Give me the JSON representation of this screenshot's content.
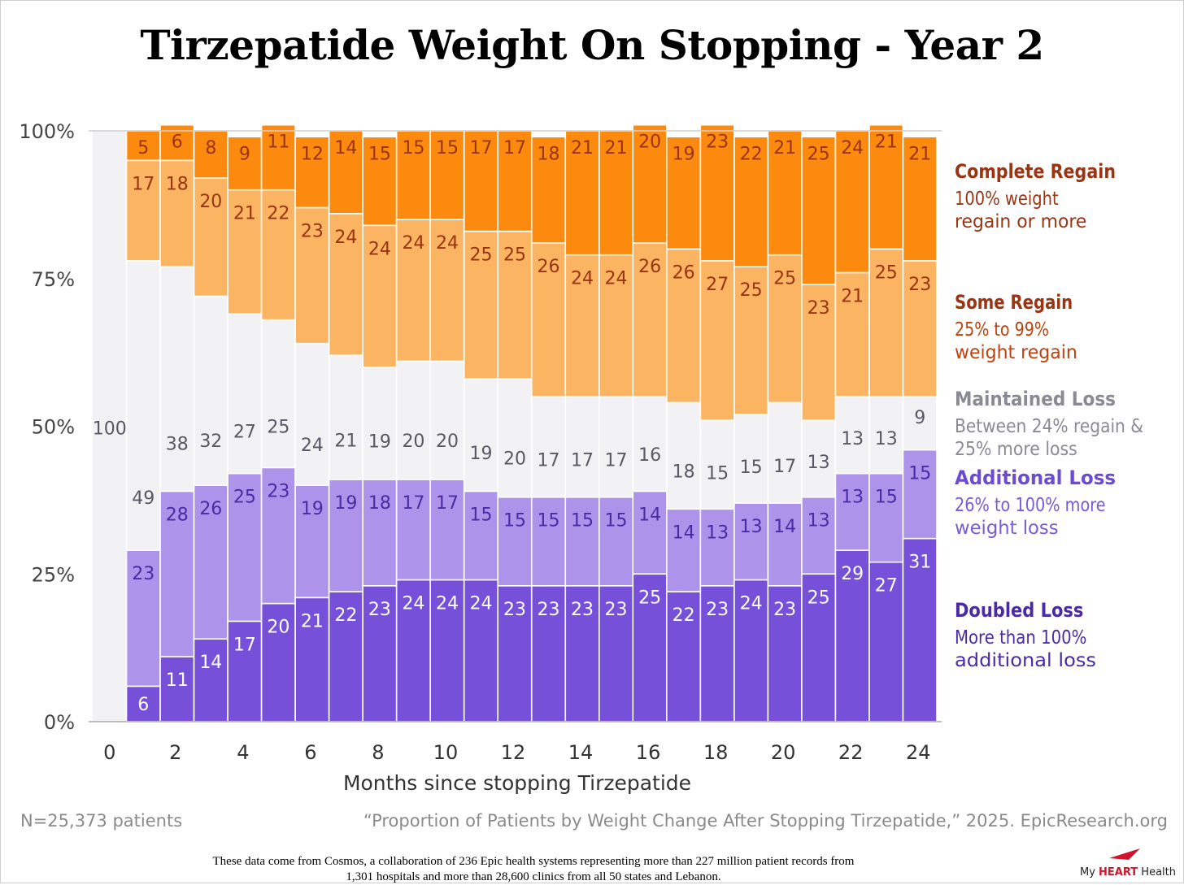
{
  "title": "Tirzepatide Weight On Stopping - Year 2",
  "footer": {
    "n_label": "N=25,373 patients",
    "citation": "“Proportion of Patients by Weight Change After Stopping Tirzepatide,” 2025. EpicResearch.org",
    "source_note": "These data come from Cosmos, a collaboration of 236 Epic health systems representing more than 227 million patient records from 1,301 hospitals and more than 28,600 clinics from all 50 states and Lebanon."
  },
  "logo": {
    "prefix": "My ",
    "emphasis": "HEART",
    "suffix": " Health"
  },
  "colors": {
    "complete_regain": "#fb8a0e",
    "some_regain": "#fbb461",
    "maintained_loss": "#f2f2f5",
    "additional_loss": "#ad94ea",
    "doubled_loss": "#7650d8",
    "label_regain": "#9a3412",
    "label_maintained": "#595966",
    "label_additional": "#4c2aa6",
    "label_doubled": "#ffffff"
  },
  "chart_data": {
    "type": "bar",
    "stacked": true,
    "normalized": true,
    "title": "Tirzepatide Weight On Stopping - Year 2",
    "xlabel": "Months since stopping Tirzepatide",
    "ylabel": "",
    "x": [
      0,
      1,
      2,
      3,
      4,
      5,
      6,
      7,
      8,
      9,
      10,
      11,
      12,
      13,
      14,
      15,
      16,
      17,
      18,
      19,
      20,
      21,
      22,
      23,
      24
    ],
    "x_ticks": [
      0,
      2,
      4,
      6,
      8,
      10,
      12,
      14,
      16,
      18,
      20,
      22,
      24
    ],
    "y_ticks": [
      "0%",
      "25%",
      "50%",
      "75%",
      "100%"
    ],
    "ylim": [
      0,
      100
    ],
    "grid": false,
    "legend_position": "right",
    "series": [
      {
        "name": "Doubled Loss",
        "description": "More than 100% additional loss",
        "values": [
          0,
          6,
          11,
          14,
          17,
          20,
          21,
          22,
          23,
          24,
          24,
          24,
          23,
          23,
          23,
          23,
          25,
          22,
          23,
          24,
          23,
          25,
          29,
          27,
          31
        ]
      },
      {
        "name": "Additional Loss",
        "description": "26% to 100% more weight loss",
        "values": [
          0,
          23,
          28,
          26,
          25,
          23,
          19,
          19,
          18,
          17,
          17,
          15,
          15,
          15,
          15,
          15,
          14,
          14,
          13,
          13,
          14,
          13,
          13,
          15,
          15
        ]
      },
      {
        "name": "Maintained Loss",
        "description": "Between 24% regain & 25% more loss",
        "values": [
          100,
          49,
          38,
          32,
          27,
          25,
          24,
          21,
          19,
          20,
          20,
          19,
          20,
          17,
          17,
          17,
          16,
          18,
          15,
          15,
          17,
          13,
          13,
          13,
          9
        ]
      },
      {
        "name": "Some Regain",
        "description": "25% to 99% weight regain",
        "values": [
          0,
          17,
          18,
          20,
          21,
          22,
          23,
          24,
          24,
          24,
          24,
          25,
          25,
          26,
          24,
          24,
          26,
          26,
          27,
          25,
          25,
          23,
          21,
          25,
          23
        ]
      },
      {
        "name": "Complete Regain",
        "description": "100% weight regain or more",
        "values": [
          0,
          5,
          6,
          8,
          9,
          11,
          12,
          14,
          15,
          15,
          15,
          17,
          17,
          18,
          21,
          21,
          20,
          19,
          23,
          22,
          21,
          25,
          24,
          21,
          21
        ]
      }
    ]
  }
}
